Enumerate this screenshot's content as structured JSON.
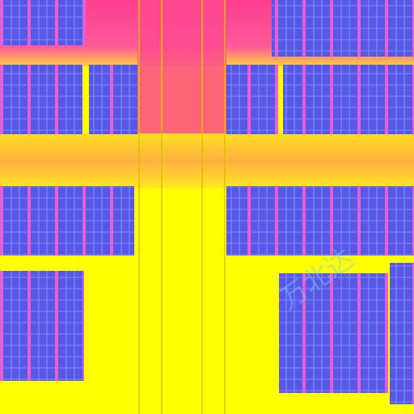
{
  "watermark": "万北达"
}
